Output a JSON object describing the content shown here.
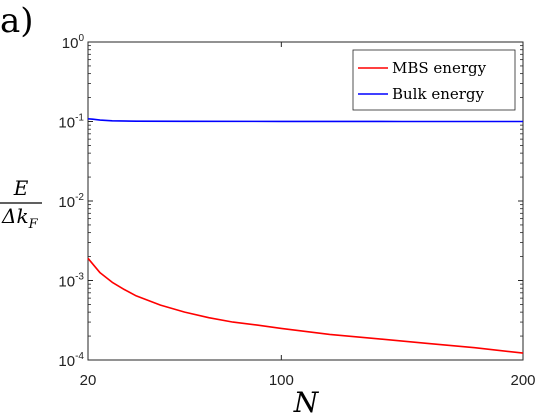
{
  "panel_label": "a)",
  "chart_data": {
    "type": "line",
    "title": "",
    "xlabel": "N",
    "ylabel": {
      "numerator": "E",
      "denominator_prefix": "Δk",
      "denominator_subscript": "F"
    },
    "xscale": "linear",
    "yscale": "log",
    "xlim": [
      20,
      200
    ],
    "ylim": [
      0.0001,
      1
    ],
    "xticks": [
      {
        "value": 20,
        "label": "20"
      },
      {
        "value": 100,
        "label": "100"
      },
      {
        "value": 200,
        "label": "200"
      }
    ],
    "yticks": [
      {
        "value": 1,
        "base": "10",
        "exp": "0"
      },
      {
        "value": 0.1,
        "base": "10",
        "exp": "-1"
      },
      {
        "value": 0.01,
        "base": "10",
        "exp": "-2"
      },
      {
        "value": 0.001,
        "base": "10",
        "exp": "-3"
      },
      {
        "value": 0.0001,
        "base": "10",
        "exp": "-4"
      }
    ],
    "grid": false,
    "legend_position": "top-right",
    "series": [
      {
        "name": "MBS energy",
        "color": "#ff0000",
        "x": [
          20,
          25,
          30,
          35,
          40,
          50,
          60,
          70,
          80,
          90,
          100,
          120,
          140,
          160,
          180,
          200
        ],
        "y": [
          0.0019,
          0.00125,
          0.00095,
          0.00077,
          0.00064,
          0.00049,
          0.0004,
          0.00034,
          0.0003,
          0.000275,
          0.00025,
          0.00021,
          0.000185,
          0.000162,
          0.000143,
          0.000122
        ]
      },
      {
        "name": "Bulk energy",
        "color": "#0000ff",
        "x": [
          20,
          22,
          25,
          30,
          40,
          60,
          100,
          150,
          200
        ],
        "y": [
          0.108,
          0.107,
          0.104,
          0.102,
          0.101,
          0.1005,
          0.1003,
          0.1001,
          0.1
        ]
      }
    ]
  }
}
